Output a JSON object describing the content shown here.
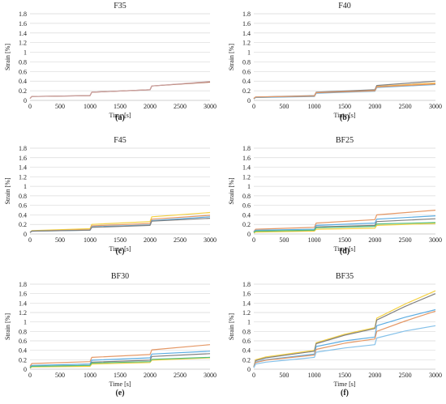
{
  "figure": {
    "x_label": "Time [s]",
    "y_label": "Strain [%]",
    "x_ticks": [
      0,
      500,
      1000,
      1500,
      2000,
      2500,
      3000
    ],
    "y_ticks": [
      "0",
      "0.2",
      "0.4",
      "0.6",
      "0.8",
      "1",
      "1.2",
      "1.4",
      "1.6",
      "1.8"
    ]
  },
  "chart_data": [
    {
      "type": "line",
      "title": "F35",
      "caption": "(a)",
      "xlabel": "Time [s]",
      "ylabel": "Strain [%]",
      "xlim": [
        0,
        3000
      ],
      "ylim": [
        0,
        1.8
      ],
      "grid": true,
      "x": [
        0,
        30,
        1000,
        1030,
        2000,
        2030,
        3000
      ],
      "series": [
        {
          "color": "#a0522d",
          "values": [
            0.04,
            0.08,
            0.1,
            0.17,
            0.22,
            0.3,
            0.38
          ]
        },
        {
          "color": "#c9a0a0",
          "values": [
            0.04,
            0.08,
            0.1,
            0.17,
            0.22,
            0.3,
            0.39
          ]
        }
      ]
    },
    {
      "type": "line",
      "title": "F40",
      "caption": "(b)",
      "xlabel": "Time [s]",
      "ylabel": "Strain [%]",
      "xlim": [
        0,
        3000
      ],
      "ylim": [
        0,
        1.8
      ],
      "grid": true,
      "x": [
        0,
        30,
        1000,
        1030,
        2000,
        2030,
        3000
      ],
      "series": [
        {
          "color": "#f5b041",
          "values": [
            0.03,
            0.06,
            0.09,
            0.16,
            0.21,
            0.29,
            0.36
          ]
        },
        {
          "color": "#5dade2",
          "values": [
            0.03,
            0.06,
            0.08,
            0.15,
            0.19,
            0.27,
            0.33
          ]
        },
        {
          "color": "#808080",
          "values": [
            0.04,
            0.07,
            0.1,
            0.17,
            0.22,
            0.31,
            0.4
          ]
        },
        {
          "color": "#e59866",
          "values": [
            0.04,
            0.07,
            0.09,
            0.16,
            0.2,
            0.28,
            0.34
          ]
        }
      ]
    },
    {
      "type": "line",
      "title": "F45",
      "caption": "(c)",
      "xlabel": "Time [s]",
      "ylabel": "Strain [%]",
      "xlim": [
        0,
        3000
      ],
      "ylim": [
        0,
        1.8
      ],
      "grid": true,
      "x": [
        0,
        30,
        1000,
        1030,
        2000,
        2030,
        3000
      ],
      "series": [
        {
          "color": "#f4d03f",
          "values": [
            0.03,
            0.07,
            0.11,
            0.2,
            0.26,
            0.36,
            0.45
          ]
        },
        {
          "color": "#e59866",
          "values": [
            0.03,
            0.06,
            0.09,
            0.17,
            0.22,
            0.31,
            0.39
          ]
        },
        {
          "color": "#5dade2",
          "values": [
            0.03,
            0.06,
            0.08,
            0.15,
            0.19,
            0.28,
            0.36
          ]
        },
        {
          "color": "#808080",
          "values": [
            0.03,
            0.06,
            0.08,
            0.14,
            0.18,
            0.27,
            0.33
          ]
        }
      ]
    },
    {
      "type": "line",
      "title": "BF25",
      "caption": "(d)",
      "xlabel": "Time [s]",
      "ylabel": "Strain [%]",
      "xlim": [
        0,
        3000
      ],
      "ylim": [
        0,
        1.8
      ],
      "grid": true,
      "x": [
        0,
        30,
        1000,
        1030,
        2000,
        2030,
        3000
      ],
      "series": [
        {
          "color": "#e59866",
          "values": [
            0.05,
            0.1,
            0.14,
            0.23,
            0.3,
            0.4,
            0.5
          ]
        },
        {
          "color": "#5dade2",
          "values": [
            0.04,
            0.08,
            0.1,
            0.18,
            0.23,
            0.31,
            0.38
          ]
        },
        {
          "color": "#808080",
          "values": [
            0.03,
            0.06,
            0.07,
            0.15,
            0.18,
            0.26,
            0.32
          ]
        },
        {
          "color": "#f4d03f",
          "values": [
            0.02,
            0.04,
            0.06,
            0.1,
            0.12,
            0.18,
            0.22
          ]
        },
        {
          "color": "#52be80",
          "values": [
            0.03,
            0.06,
            0.08,
            0.13,
            0.16,
            0.21,
            0.24
          ]
        }
      ]
    },
    {
      "type": "line",
      "title": "BF30",
      "caption": "(e)",
      "xlabel": "Time [s]",
      "ylabel": "Strain [%]",
      "xlim": [
        0,
        3000
      ],
      "ylim": [
        0,
        1.8
      ],
      "grid": true,
      "x": [
        0,
        30,
        1000,
        1030,
        2000,
        2030,
        3000
      ],
      "series": [
        {
          "color": "#e59866",
          "values": [
            0.06,
            0.12,
            0.16,
            0.25,
            0.31,
            0.41,
            0.52
          ]
        },
        {
          "color": "#5dade2",
          "values": [
            0.04,
            0.08,
            0.11,
            0.19,
            0.24,
            0.32,
            0.38
          ]
        },
        {
          "color": "#808080",
          "values": [
            0.03,
            0.06,
            0.08,
            0.15,
            0.19,
            0.27,
            0.33
          ]
        },
        {
          "color": "#f4d03f",
          "values": [
            0.02,
            0.05,
            0.06,
            0.11,
            0.14,
            0.19,
            0.24
          ]
        },
        {
          "color": "#52be80",
          "values": [
            0.03,
            0.06,
            0.08,
            0.13,
            0.16,
            0.21,
            0.25
          ]
        }
      ]
    },
    {
      "type": "line",
      "title": "BF35",
      "caption": "(f)",
      "xlabel": "Time [s]",
      "ylabel": "Strain [%]",
      "xlim": [
        0,
        3000
      ],
      "ylim": [
        0,
        1.8
      ],
      "grid": true,
      "x": [
        0,
        30,
        200,
        1000,
        1030,
        1500,
        2000,
        2030,
        2500,
        3000
      ],
      "series": [
        {
          "color": "#f4d03f",
          "values": [
            0.05,
            0.2,
            0.26,
            0.4,
            0.56,
            0.74,
            0.88,
            1.08,
            1.38,
            1.66
          ]
        },
        {
          "color": "#808080",
          "values": [
            0.05,
            0.18,
            0.24,
            0.38,
            0.54,
            0.72,
            0.86,
            1.04,
            1.33,
            1.6
          ]
        },
        {
          "color": "#5dade2",
          "values": [
            0.04,
            0.15,
            0.2,
            0.32,
            0.48,
            0.6,
            0.68,
            0.92,
            1.1,
            1.26
          ]
        },
        {
          "color": "#e59866",
          "values": [
            0.04,
            0.14,
            0.19,
            0.3,
            0.42,
            0.55,
            0.64,
            0.8,
            1.02,
            1.23
          ]
        },
        {
          "color": "#85c1e9",
          "values": [
            0.03,
            0.11,
            0.15,
            0.25,
            0.36,
            0.45,
            0.52,
            0.66,
            0.81,
            0.92
          ]
        }
      ]
    }
  ]
}
